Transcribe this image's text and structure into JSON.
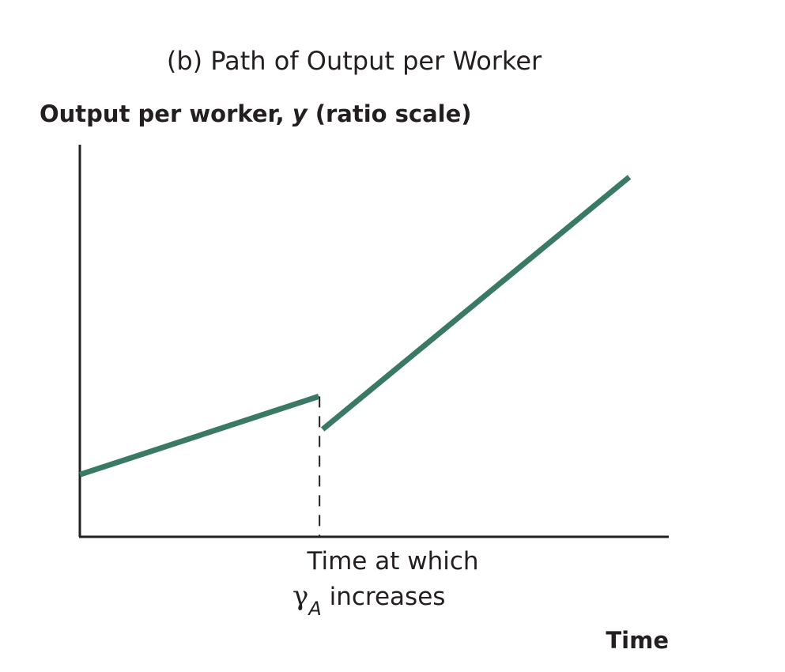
{
  "chart_data": {
    "type": "line",
    "title": "(b) Path of Output per Worker",
    "ylabel": {
      "prefix": "Output per worker, ",
      "variable": "y",
      "suffix": " (ratio scale)"
    },
    "xlabel": "Time",
    "y_scale": "log",
    "axis_ticks": "none",
    "grid": false,
    "legend": "none",
    "break_annotation": {
      "line1": "Time at which",
      "symbol": "γ",
      "subscript": "A",
      "line2_rest": " increases",
      "line_style": "dashed"
    },
    "series": [
      {
        "segments": [
          {
            "x": [
              0,
              1.0
            ],
            "y": [
              1.0,
              1.9
            ]
          },
          {
            "x": [
              1.0,
              2.3
            ],
            "y": [
              1.45,
              11.5
            ]
          }
        ]
      }
    ],
    "xlim": [
      0,
      2.3
    ],
    "ylim_ratio": [
      0.6,
      15
    ],
    "colors": {
      "line": "#3a7a64",
      "axis": "#231f20",
      "text": "#231f20"
    }
  }
}
